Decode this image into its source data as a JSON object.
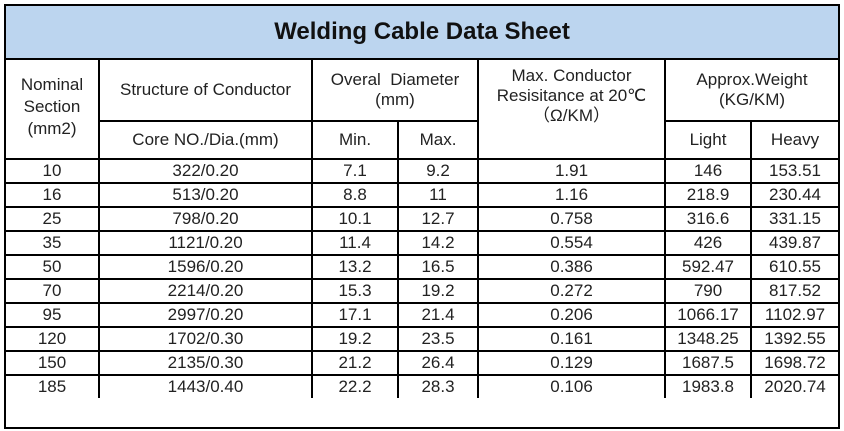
{
  "title": "Welding Cable Data Sheet",
  "headers": {
    "nominal_l1": "Nominal",
    "nominal_l2": "Section",
    "nominal_l3": "(mm2)",
    "structure": "Structure of Conductor",
    "core": "Core NO./Dia.(mm)",
    "diameter_l1": "Overal  Diameter",
    "diameter_l2": "(mm)",
    "min": "Min.",
    "max": "Max.",
    "resistance_l1": "Max. Conductor",
    "resistance_l2": "Resisitance at 20℃",
    "resistance_l3": "（Ω/KM）",
    "weight_l1": "Approx.Weight",
    "weight_l2": "(KG/KM)",
    "light": "Light",
    "heavy": "Heavy"
  },
  "rows": [
    {
      "section": "10",
      "core": "322/0.20",
      "min": "7.1",
      "max": "9.2",
      "resistance": "1.91",
      "light": "146",
      "heavy": "153.51"
    },
    {
      "section": "16",
      "core": "513/0.20",
      "min": "8.8",
      "max": "11",
      "resistance": "1.16",
      "light": "218.9",
      "heavy": "230.44"
    },
    {
      "section": "25",
      "core": "798/0.20",
      "min": "10.1",
      "max": "12.7",
      "resistance": "0.758",
      "light": "316.6",
      "heavy": "331.15"
    },
    {
      "section": "35",
      "core": "1121/0.20",
      "min": "11.4",
      "max": "14.2",
      "resistance": "0.554",
      "light": "426",
      "heavy": "439.87"
    },
    {
      "section": "50",
      "core": "1596/0.20",
      "min": "13.2",
      "max": "16.5",
      "resistance": "0.386",
      "light": "592.47",
      "heavy": "610.55"
    },
    {
      "section": "70",
      "core": "2214/0.20",
      "min": "15.3",
      "max": "19.2",
      "resistance": "0.272",
      "light": "790",
      "heavy": "817.52"
    },
    {
      "section": "95",
      "core": "2997/0.20",
      "min": "17.1",
      "max": "21.4",
      "resistance": "0.206",
      "light": "1066.17",
      "heavy": "1102.97"
    },
    {
      "section": "120",
      "core": "1702/0.30",
      "min": "19.2",
      "max": "23.5",
      "resistance": "0.161",
      "light": "1348.25",
      "heavy": "1392.55"
    },
    {
      "section": "150",
      "core": "2135/0.30",
      "min": "21.2",
      "max": "26.4",
      "resistance": "0.129",
      "light": "1687.5",
      "heavy": "1698.72"
    },
    {
      "section": "185",
      "core": "1443/0.40",
      "min": "22.2",
      "max": "28.3",
      "resistance": "0.106",
      "light": "1983.8",
      "heavy": "2020.74"
    }
  ],
  "colors": {
    "title_bg": "#bcd5ef",
    "border": "#000000",
    "text": "#222222"
  }
}
